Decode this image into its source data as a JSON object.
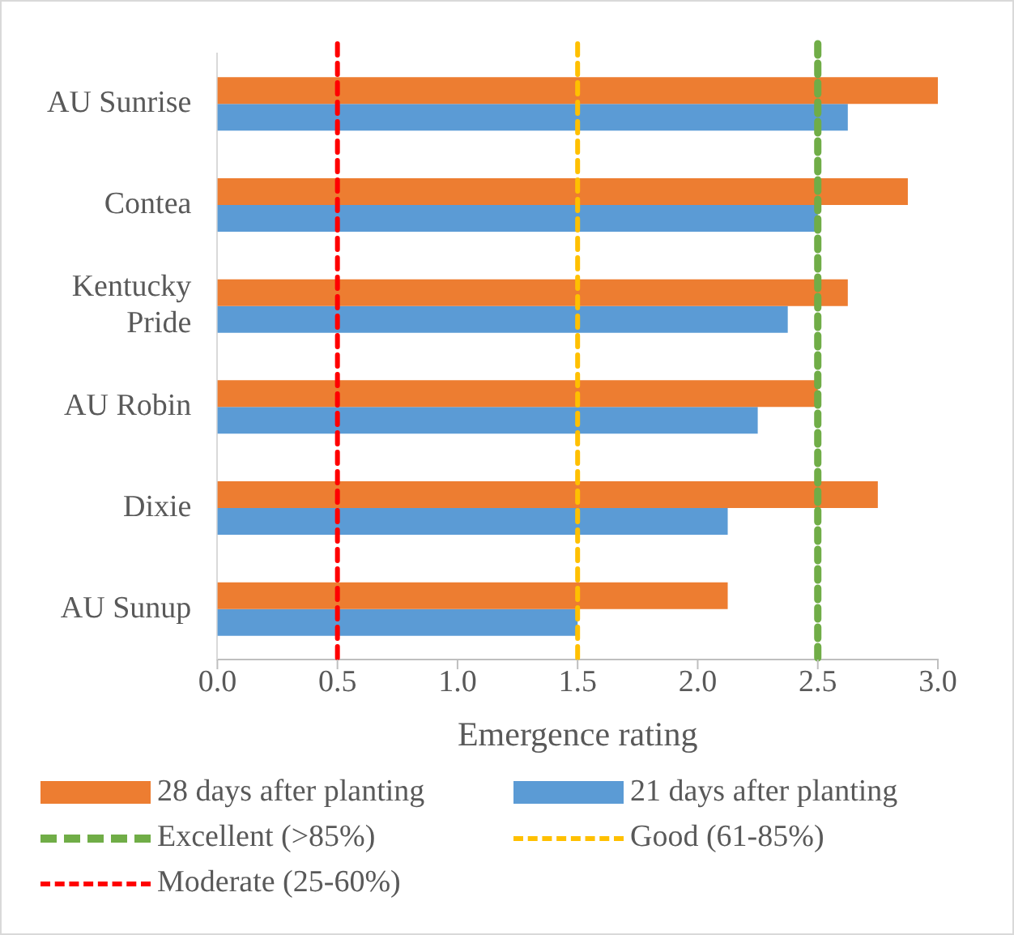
{
  "chart_data": {
    "type": "bar",
    "orientation": "horizontal",
    "xlabel": "Emergence rating",
    "categories": [
      "AU Sunrise",
      "Contea",
      "Kentucky Pride",
      "AU Robin",
      "Dixie",
      "AU Sunup"
    ],
    "series": [
      {
        "name": "28 days after planting",
        "color": "#ed7d31",
        "values": [
          3.0,
          2.875,
          2.625,
          2.5,
          2.75,
          2.125
        ]
      },
      {
        "name": "21 days after planting",
        "color": "#5b9bd5",
        "values": [
          2.625,
          2.5,
          2.375,
          2.25,
          2.125,
          1.5
        ]
      }
    ],
    "xlim": [
      0,
      3
    ],
    "xticks": [
      {
        "value": 0,
        "label": "0.0"
      },
      {
        "value": 0.5,
        "label": "0.5"
      },
      {
        "value": 1,
        "label": "1.0"
      },
      {
        "value": 1.5,
        "label": "1.5"
      },
      {
        "value": 2,
        "label": "2.0"
      },
      {
        "value": 2.5,
        "label": "2.5"
      },
      {
        "value": 3,
        "label": "3.0"
      }
    ],
    "grid": false,
    "legend": "bottom",
    "ref_lines": [
      {
        "axis": "x",
        "value": 2.5,
        "label": "Excellent (>85%)",
        "color": "#70ad47",
        "line_style": "dashed"
      },
      {
        "axis": "x",
        "value": 1.5,
        "label": "Good (61-85%)",
        "color": "#ffc000",
        "line_style": "dashed"
      },
      {
        "axis": "x",
        "value": 0.5,
        "label": "Moderate (25-60%)",
        "color": "#ff0000",
        "line_style": "dashed"
      }
    ]
  }
}
